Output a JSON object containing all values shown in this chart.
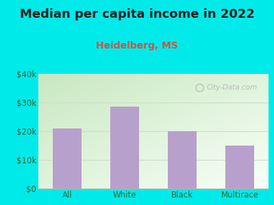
{
  "title": "Median per capita income in 2022",
  "subtitle": "Heidelberg, MS",
  "categories": [
    "All",
    "White",
    "Black",
    "Multirace"
  ],
  "values": [
    21000,
    28500,
    20000,
    15000
  ],
  "bar_color": "#b8a0cc",
  "outer_bg": "#00eaea",
  "grad_top_left": "#c8e8c0",
  "grad_bottom_right": "#f8fff8",
  "title_color": "#222222",
  "subtitle_color": "#cc5544",
  "axis_label_color": "#336633",
  "ylim": [
    0,
    40000
  ],
  "yticks": [
    0,
    10000,
    20000,
    30000,
    40000
  ],
  "ytick_labels": [
    "$0",
    "$10k",
    "$20k",
    "$30k",
    "$40k"
  ],
  "watermark": "City-Data.com",
  "title_fontsize": 13,
  "subtitle_fontsize": 10,
  "tick_fontsize": 8.5,
  "grid_color": "#ccddcc",
  "bottom_line_color": "#aabbaa"
}
